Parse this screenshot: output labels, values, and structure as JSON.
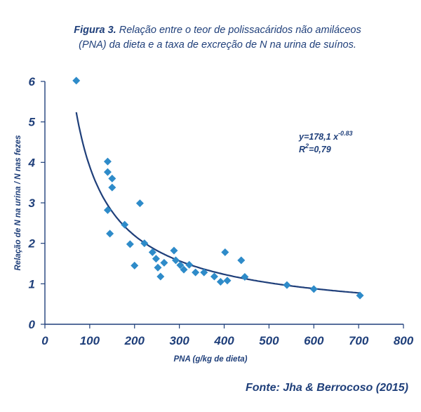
{
  "figure": {
    "label": "Figura 3.",
    "caption_line1": "Relação entre o teor de polissacáridos não amiláceos",
    "caption_line2": "(PNA) da dieta e a taxa de excreção de N na urina de suínos."
  },
  "source": "Fonte: Jha & Berrocoso (2015)",
  "colors": {
    "primary": "#1f3f7a",
    "marker": "#2e8bc9"
  },
  "chart_data": {
    "type": "scatter",
    "xlabel": "PNA (g/kg de dieta)",
    "ylabel": "Relação de N na urina / N nas fezes",
    "xlim": [
      0,
      800
    ],
    "ylim": [
      0,
      6
    ],
    "xticks": [
      0,
      100,
      200,
      300,
      400,
      500,
      600,
      700,
      800
    ],
    "yticks": [
      0,
      1,
      2,
      3,
      4,
      5,
      6
    ],
    "grid": false,
    "trendline": {
      "type": "power",
      "a": 178.1,
      "b": -0.83
    },
    "equation": {
      "prefix": "y=178,1 x",
      "exponent": "-0.83",
      "r2_prefix": "R",
      "r2_exp": "2",
      "r2_value": "=0,79"
    },
    "points": [
      {
        "x": 70,
        "y": 6.02
      },
      {
        "x": 140,
        "y": 4.02
      },
      {
        "x": 140,
        "y": 3.76
      },
      {
        "x": 150,
        "y": 3.6
      },
      {
        "x": 150,
        "y": 3.38
      },
      {
        "x": 140,
        "y": 2.82
      },
      {
        "x": 145,
        "y": 2.24
      },
      {
        "x": 212,
        "y": 2.99
      },
      {
        "x": 178,
        "y": 2.46
      },
      {
        "x": 190,
        "y": 1.98
      },
      {
        "x": 200,
        "y": 1.45
      },
      {
        "x": 222,
        "y": 2.0
      },
      {
        "x": 240,
        "y": 1.78
      },
      {
        "x": 248,
        "y": 1.62
      },
      {
        "x": 252,
        "y": 1.4
      },
      {
        "x": 258,
        "y": 1.18
      },
      {
        "x": 266,
        "y": 1.52
      },
      {
        "x": 288,
        "y": 1.82
      },
      {
        "x": 292,
        "y": 1.58
      },
      {
        "x": 302,
        "y": 1.46
      },
      {
        "x": 310,
        "y": 1.35
      },
      {
        "x": 322,
        "y": 1.47
      },
      {
        "x": 336,
        "y": 1.28
      },
      {
        "x": 355,
        "y": 1.28
      },
      {
        "x": 378,
        "y": 1.18
      },
      {
        "x": 392,
        "y": 1.05
      },
      {
        "x": 402,
        "y": 1.78
      },
      {
        "x": 407,
        "y": 1.08
      },
      {
        "x": 438,
        "y": 1.58
      },
      {
        "x": 446,
        "y": 1.17
      },
      {
        "x": 540,
        "y": 0.97
      },
      {
        "x": 600,
        "y": 0.87
      },
      {
        "x": 703,
        "y": 0.71
      }
    ]
  }
}
